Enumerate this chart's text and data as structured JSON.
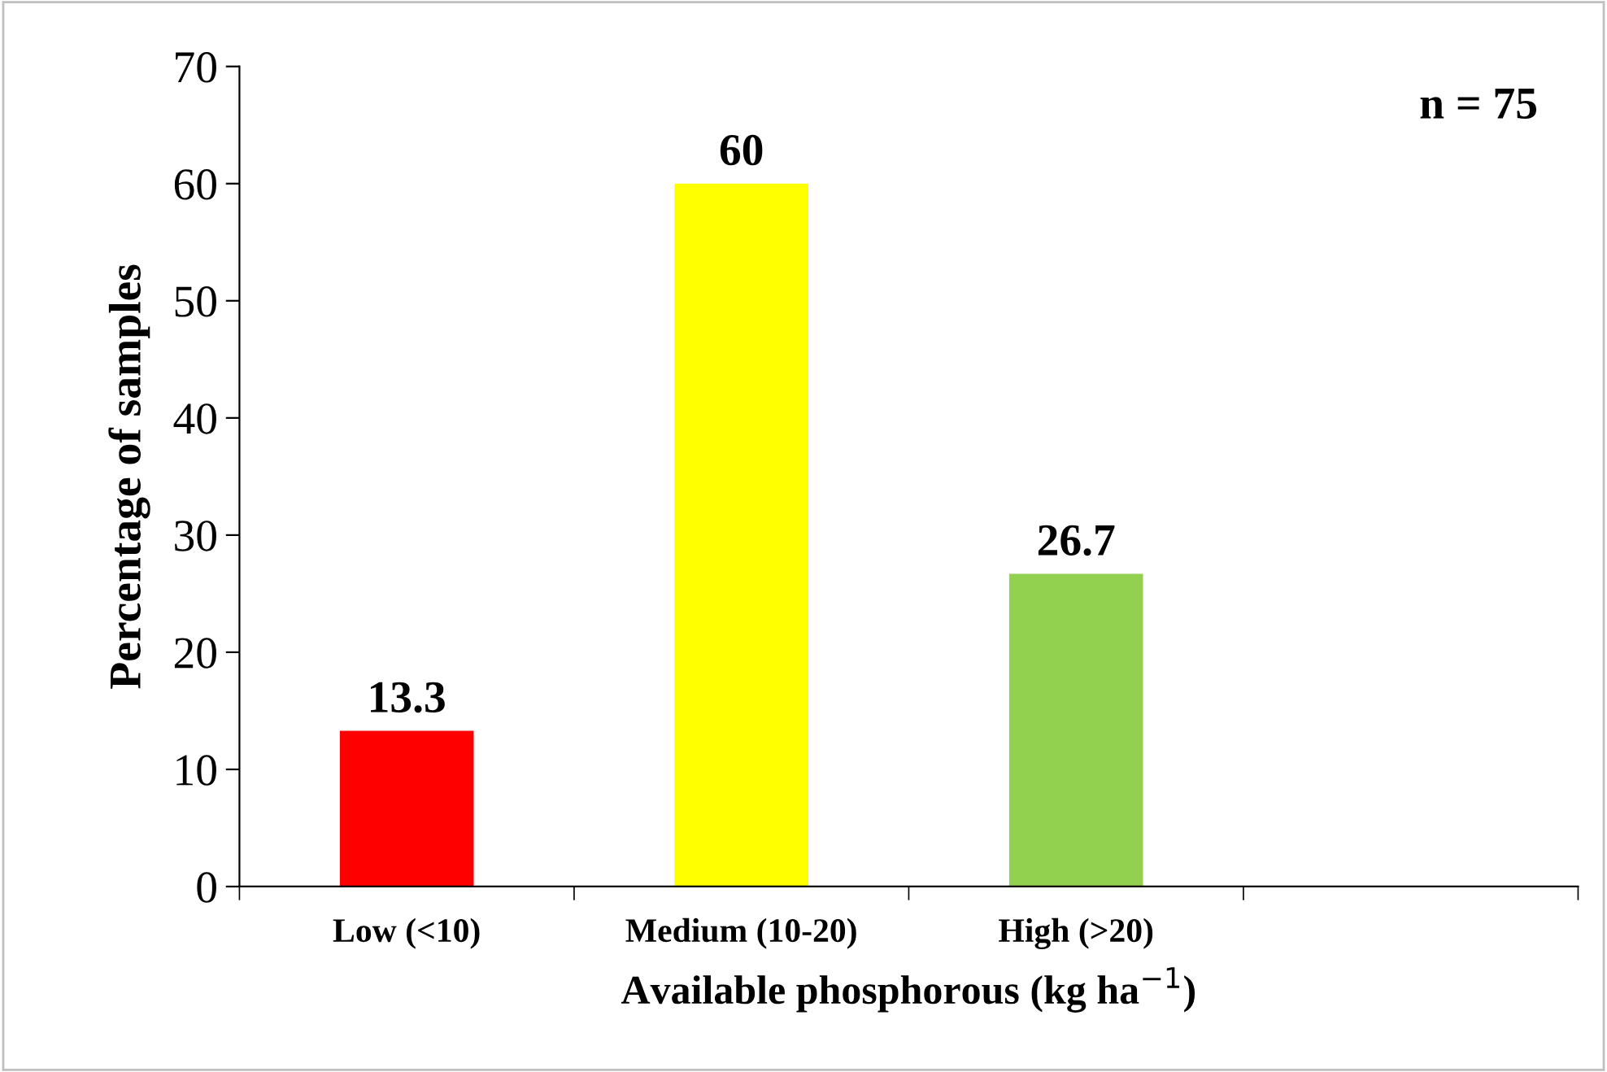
{
  "chart_data": {
    "type": "bar",
    "xlabel": "Available phosphorous (kg ha$^{−1}$)",
    "ylabel": "Percentage of samples",
    "categories": [
      "Low (<10)",
      "Medium (10-20)",
      "High (>20)",
      null
    ],
    "values": [
      13.3,
      60,
      26.7,
      null
    ],
    "colors": [
      "#ff0000",
      "#ffff00",
      "#92d050",
      "#ffffff"
    ],
    "ylim": [
      0,
      70
    ],
    "yticks": [
      0,
      10,
      20,
      30,
      40,
      50,
      60,
      70
    ],
    "data_labels": true,
    "grid": false,
    "legend": false,
    "annotations": [
      "n = 75"
    ]
  }
}
